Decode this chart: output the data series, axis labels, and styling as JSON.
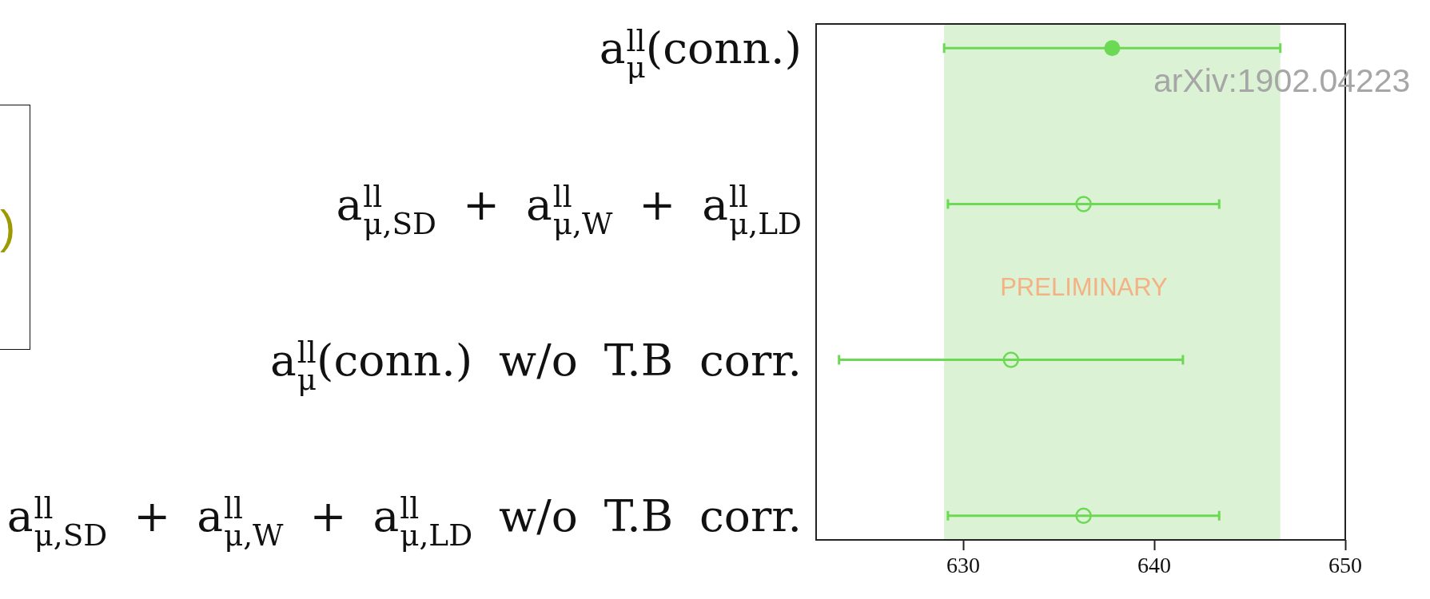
{
  "chart_data": {
    "type": "scatter",
    "orientation": "horizontal",
    "categories": [
      "a$^{ll}$$_{μ}$(conn.)",
      "a$^{ll}$$_{μ,SD}$ + a$^{ll}$$_{μ,W}$ + a$^{ll}$$_{μ,LD}$",
      "a$^{ll}$$_{μ}$(conn.) w/o T.B corr.",
      "a$^{ll}$$_{μ,SD}$ + a$^{ll}$$_{μ,W}$ + a$^{ll}$$_{μ,LD}$ w/o T.B corr."
    ],
    "series": [
      {
        "color": "#6cd955",
        "values": [
          637.8,
          null,
          null,
          null
        ],
        "errors": [
          8.8,
          null,
          null,
          null
        ]
      },
      {
        "color": "#6cd955",
        "values": [
          null,
          636.3,
          632.5,
          636.3
        ],
        "errors": [
          null,
          7.1,
          9.0,
          7.1
        ]
      }
    ],
    "xlim": [
      622.3,
      650
    ],
    "xticks": [
      630,
      640,
      650
    ],
    "bands": [
      {
        "axis": "x",
        "from": 629.0,
        "to": 646.6,
        "color": "#dbf2d5"
      }
    ],
    "marker": "circle",
    "annotations": [
      ")",
      "arXiv:1902.04223",
      "PRELIMINARY"
    ]
  }
}
